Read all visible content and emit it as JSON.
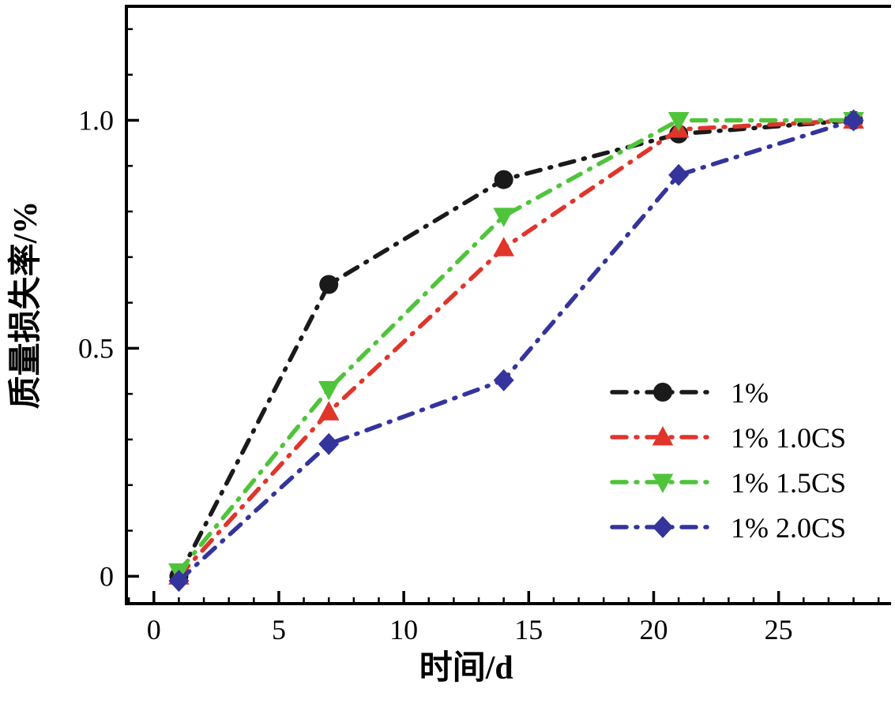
{
  "figure": {
    "background": "#ffffff",
    "axis_color": "#000000"
  },
  "chart_data": {
    "type": "line",
    "title": "",
    "xlabel": "时间/d",
    "ylabel": "质量损失率/%",
    "grid": false,
    "line_style": "dash-dot",
    "legend_position": "right-middle",
    "xlim": [
      -1.1,
      29.5
    ],
    "ylim": [
      -0.06,
      1.25
    ],
    "xticks": [
      0,
      5,
      10,
      15,
      20,
      25
    ],
    "xtick_labels": [
      "0",
      "5",
      "10",
      "15",
      "20",
      "25"
    ],
    "yticks": [
      0,
      0.5,
      1.0
    ],
    "ytick_labels": [
      "0",
      "0.5",
      "1.0"
    ],
    "x_minor_step": 1,
    "y_minor_step": 0.1,
    "x": [
      1,
      7,
      14,
      21,
      28
    ],
    "series": [
      {
        "name": "1%",
        "color": "#1a1a1a",
        "marker": "circle",
        "values": [
          0.0,
          0.64,
          0.87,
          0.97,
          1.0
        ]
      },
      {
        "name": "1% 1.0CS",
        "color": "#e0352b",
        "marker": "triangle-up",
        "values": [
          0.0,
          0.36,
          0.72,
          0.98,
          1.0
        ]
      },
      {
        "name": "1% 1.5CS",
        "color": "#4fc43a",
        "marker": "triangle-down",
        "values": [
          0.01,
          0.41,
          0.79,
          1.0,
          1.0
        ]
      },
      {
        "name": "1% 2.0CS",
        "color": "#34349c",
        "marker": "diamond",
        "values": [
          -0.01,
          0.29,
          0.43,
          0.88,
          1.0
        ]
      }
    ]
  },
  "legend": {
    "entries": [
      "1%",
      "1% 1.0CS",
      "1% 1.5CS",
      "1% 2.0CS"
    ]
  }
}
